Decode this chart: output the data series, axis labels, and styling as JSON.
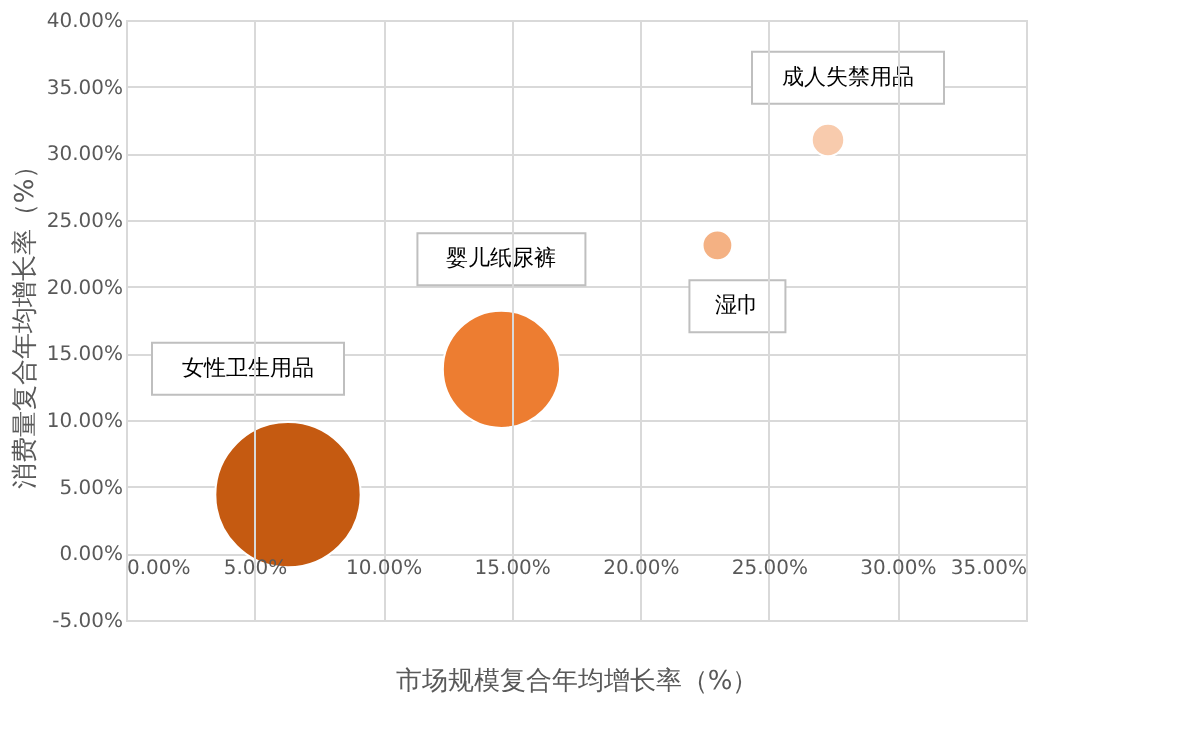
{
  "chart_data": {
    "type": "bubble",
    "xlabel": "市场规模复合年均增长率（%）",
    "ylabel": "消费量复合年均增长率（%）",
    "series": [
      {
        "name": "女性卫生用品",
        "color": "#c55a11",
        "x": [
          6.3
        ],
        "values": [
          4.4
        ],
        "sizes": [
          1
        ]
      },
      {
        "name": "婴儿纸尿裤",
        "color": "#ed7d31",
        "x": [
          14.6
        ],
        "values": [
          13.8
        ],
        "sizes": [
          0.65
        ]
      },
      {
        "name": "湿巾",
        "color": "#f4b183",
        "x": [
          23.0
        ],
        "values": [
          23.1
        ],
        "sizes": [
          0.042
        ]
      },
      {
        "name": "成人失禁用品",
        "color": "#f8cbad",
        "x": [
          27.3
        ],
        "values": [
          31.0
        ],
        "sizes": [
          0.05
        ]
      }
    ],
    "xlim": [
      0,
      35
    ],
    "ylim": [
      -5,
      40
    ],
    "xticks": [
      {
        "value": 0,
        "label": "0.00%"
      },
      {
        "value": 5,
        "label": "5.00%"
      },
      {
        "value": 10,
        "label": "10.00%"
      },
      {
        "value": 15,
        "label": "15.00%"
      },
      {
        "value": 20,
        "label": "20.00%"
      },
      {
        "value": 25,
        "label": "25.00%"
      },
      {
        "value": 30,
        "label": "30.00%"
      },
      {
        "value": 35,
        "label": "35.00%"
      }
    ],
    "yticks": [
      {
        "value": -5,
        "label": "-5.00%"
      },
      {
        "value": 0,
        "label": "0.00%"
      },
      {
        "value": 5,
        "label": "5.00%"
      },
      {
        "value": 10,
        "label": "10.00%"
      },
      {
        "value": 15,
        "label": "15.00%"
      },
      {
        "value": 20,
        "label": "20.00%"
      },
      {
        "value": 25,
        "label": "25.00%"
      },
      {
        "value": 30,
        "label": "30.00%"
      },
      {
        "value": 35,
        "label": "35.00%"
      },
      {
        "value": 40,
        "label": "40.00%"
      }
    ],
    "grid": true,
    "legend": false
  }
}
